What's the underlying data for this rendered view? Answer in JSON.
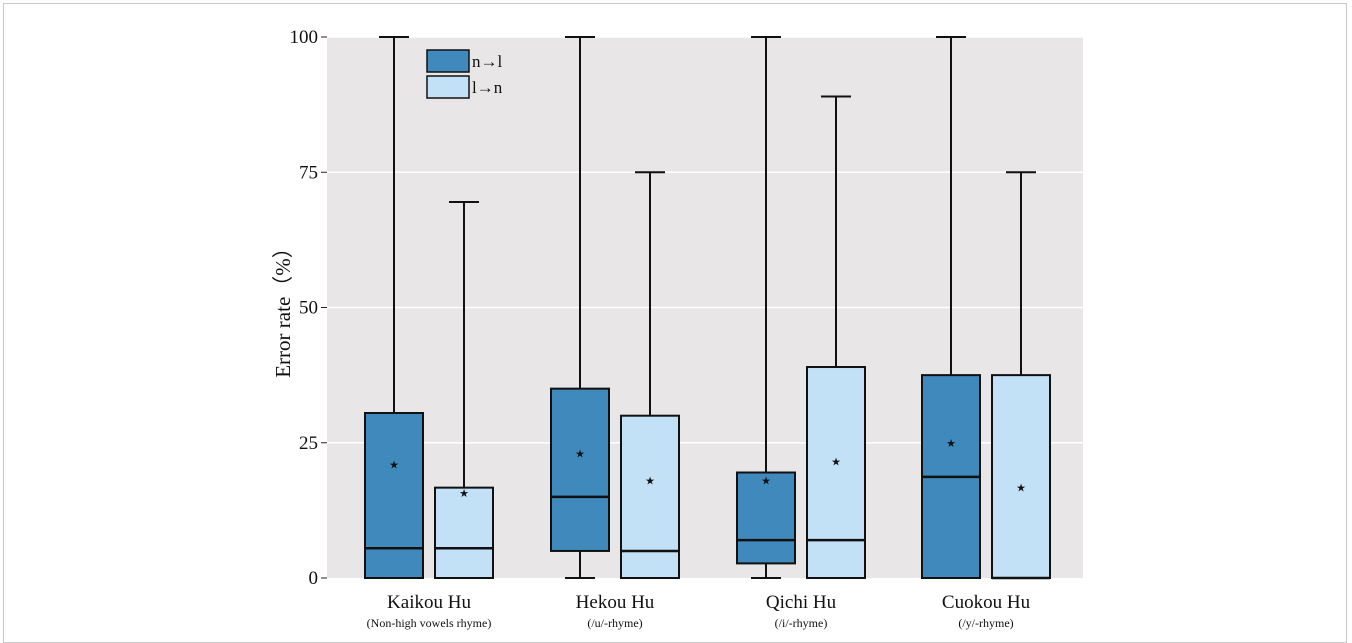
{
  "chart_data": {
    "type": "box",
    "ylabel": "Error rate（%）",
    "ylim": [
      0,
      100
    ],
    "yticks": [
      0,
      25,
      50,
      75,
      100
    ],
    "grid": true,
    "legend_position": "top-left",
    "categories": [
      {
        "label": "Kaikou Hu",
        "sublabel": "(Non-high vowels rhyme)"
      },
      {
        "label": "Hekou Hu",
        "sublabel": "(/u/-rhyme)"
      },
      {
        "label": "Qichi Hu",
        "sublabel": "(/i/-rhyme)"
      },
      {
        "label": "Cuokou Hu",
        "sublabel": "(/y/-rhyme)"
      }
    ],
    "series": [
      {
        "name": "n→l",
        "color": "#3f89bd",
        "boxes": [
          {
            "min": 0,
            "q1": 0,
            "median": 5.5,
            "q3": 30.5,
            "max": 100,
            "mean": 21
          },
          {
            "min": 0,
            "q1": 5,
            "median": 15,
            "q3": 35,
            "max": 100,
            "mean": 23
          },
          {
            "min": 0,
            "q1": 2.7,
            "median": 7,
            "q3": 19.5,
            "max": 100,
            "mean": 18
          },
          {
            "min": 0,
            "q1": 0,
            "median": 18.7,
            "q3": 37.5,
            "max": 100,
            "mean": 25
          }
        ]
      },
      {
        "name": "l→n",
        "color": "#c3e1f6",
        "boxes": [
          {
            "min": 0,
            "q1": 0,
            "median": 5.5,
            "q3": 16.7,
            "max": 69.5,
            "mean": 15.7
          },
          {
            "min": 0,
            "q1": 0,
            "median": 5,
            "q3": 30,
            "max": 75,
            "mean": 18
          },
          {
            "min": 0,
            "q1": 0,
            "median": 7,
            "q3": 39,
            "max": 89,
            "mean": 21.5
          },
          {
            "min": 0,
            "q1": 0,
            "median": 0,
            "q3": 37.5,
            "max": 75,
            "mean": 16.7
          }
        ]
      }
    ]
  }
}
